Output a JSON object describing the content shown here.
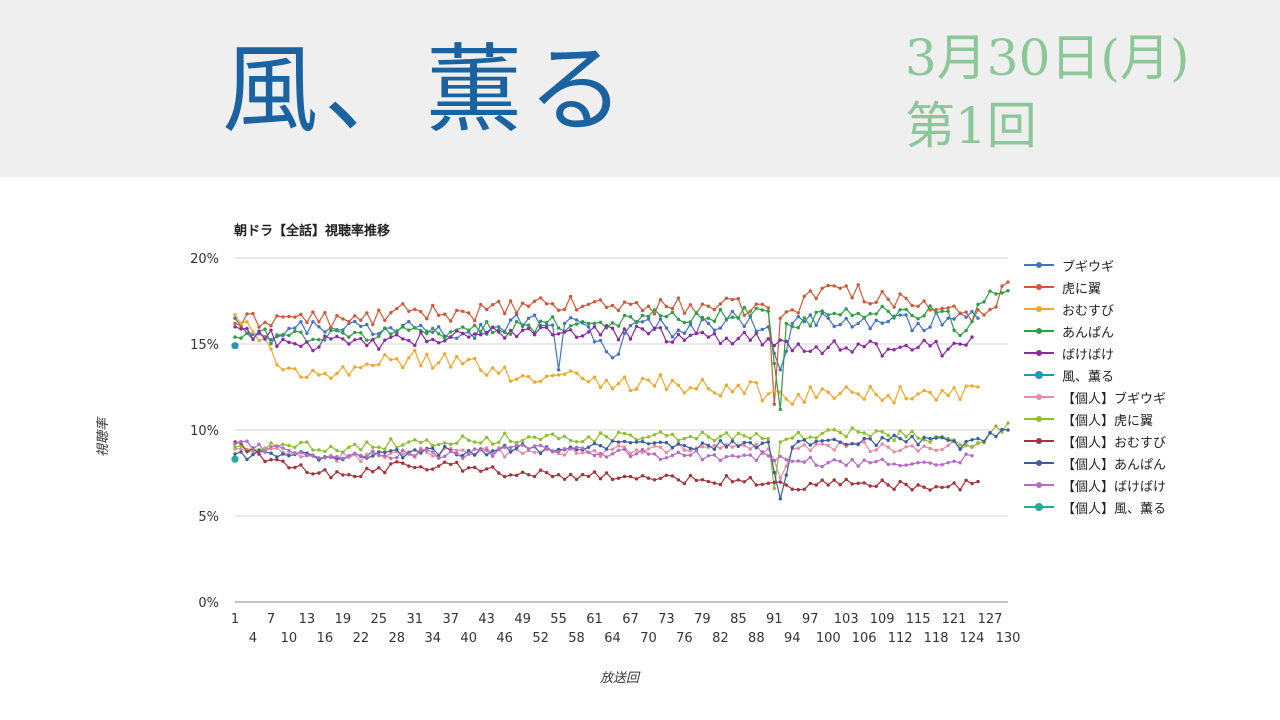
{
  "header": {
    "drama_title": "風、薫る",
    "air_date": "3月30日(月)",
    "episode": "第1回"
  },
  "chart_data": {
    "type": "line",
    "title": "朝ドラ【全話】視聴率推移",
    "xlabel": "放送回",
    "ylabel": "視聴率",
    "xlim": [
      1,
      130
    ],
    "ylim": [
      0,
      20
    ],
    "yticks": [
      0,
      5,
      10,
      15,
      20
    ],
    "ytick_labels": [
      "0%",
      "5%",
      "10%",
      "15%",
      "20%"
    ],
    "xticks_upper": [
      1,
      7,
      13,
      19,
      25,
      31,
      37,
      43,
      49,
      55,
      61,
      67,
      73,
      79,
      85,
      91,
      97,
      103,
      109,
      115,
      121,
      127
    ],
    "xticks_lower": [
      4,
      10,
      16,
      22,
      28,
      34,
      40,
      46,
      52,
      58,
      64,
      70,
      76,
      82,
      88,
      94,
      100,
      106,
      112,
      118,
      124,
      130
    ],
    "grid": true,
    "legend_position": "right",
    "series": [
      {
        "name": "ブギウギ",
        "color": "#4472c4",
        "keypoints": [
          [
            1,
            16.5
          ],
          [
            5,
            15.6
          ],
          [
            10,
            15.9
          ],
          [
            15,
            16.0
          ],
          [
            20,
            16.2
          ],
          [
            25,
            15.6
          ],
          [
            30,
            16.3
          ],
          [
            35,
            16.0
          ],
          [
            40,
            15.7
          ],
          [
            45,
            16.0
          ],
          [
            50,
            16.5
          ],
          [
            54,
            16.1
          ],
          [
            55,
            13.5
          ],
          [
            56,
            16.2
          ],
          [
            60,
            16.0
          ],
          [
            64,
            14.2
          ],
          [
            68,
            16.3
          ],
          [
            75,
            15.8
          ],
          [
            80,
            16.2
          ],
          [
            85,
            16.5
          ],
          [
            90,
            16.0
          ],
          [
            92,
            13.5
          ],
          [
            94,
            16.2
          ],
          [
            100,
            16.5
          ],
          [
            105,
            16.2
          ],
          [
            110,
            16.3
          ],
          [
            115,
            16.2
          ],
          [
            120,
            16.5
          ],
          [
            125,
            16.5
          ]
        ],
        "noise": 0.5
      },
      {
        "name": "虎に翼",
        "color": "#d05a38",
        "keypoints": [
          [
            1,
            16.2
          ],
          [
            10,
            16.6
          ],
          [
            20,
            16.3
          ],
          [
            30,
            16.9
          ],
          [
            40,
            16.8
          ],
          [
            50,
            17.2
          ],
          [
            60,
            17.3
          ],
          [
            70,
            17.2
          ],
          [
            80,
            17.2
          ],
          [
            90,
            17.1
          ],
          [
            91,
            11.5
          ],
          [
            92,
            16.5
          ],
          [
            100,
            18.4
          ],
          [
            110,
            17.6
          ],
          [
            120,
            17.1
          ],
          [
            124,
            16.3
          ],
          [
            127,
            17.0
          ],
          [
            130,
            18.6
          ]
        ],
        "noise": 0.5
      },
      {
        "name": "おむすび",
        "color": "#f0a830",
        "keypoints": [
          [
            1,
            16.7
          ],
          [
            5,
            15.2
          ],
          [
            10,
            13.6
          ],
          [
            15,
            13.2
          ],
          [
            20,
            13.2
          ],
          [
            25,
            13.8
          ],
          [
            30,
            14.2
          ],
          [
            35,
            13.9
          ],
          [
            40,
            14.1
          ],
          [
            45,
            13.3
          ],
          [
            50,
            13.1
          ],
          [
            55,
            13.2
          ],
          [
            60,
            12.8
          ],
          [
            65,
            12.7
          ],
          [
            70,
            12.9
          ],
          [
            75,
            12.6
          ],
          [
            80,
            12.4
          ],
          [
            85,
            12.6
          ],
          [
            90,
            12.1
          ],
          [
            93,
            11.8
          ],
          [
            100,
            12.2
          ],
          [
            105,
            12.1
          ],
          [
            110,
            12.0
          ],
          [
            115,
            12.1
          ],
          [
            120,
            12.0
          ],
          [
            125,
            12.5
          ]
        ],
        "noise": 0.5
      },
      {
        "name": "あんぱん",
        "color": "#2e9e44",
        "keypoints": [
          [
            1,
            15.4
          ],
          [
            10,
            15.5
          ],
          [
            20,
            15.4
          ],
          [
            30,
            15.8
          ],
          [
            40,
            15.8
          ],
          [
            50,
            16.1
          ],
          [
            60,
            16.2
          ],
          [
            70,
            16.6
          ],
          [
            80,
            16.5
          ],
          [
            90,
            16.9
          ],
          [
            92,
            11.2
          ],
          [
            93,
            16.2
          ],
          [
            100,
            16.7
          ],
          [
            110,
            16.9
          ],
          [
            120,
            16.9
          ],
          [
            122,
            15.5
          ],
          [
            125,
            17.3
          ],
          [
            130,
            18.1
          ]
        ],
        "noise": 0.45
      },
      {
        "name": "ばけばけ",
        "color": "#8b2aa3",
        "keypoints": [
          [
            1,
            16.0
          ],
          [
            10,
            15.1
          ],
          [
            20,
            15.0
          ],
          [
            30,
            15.2
          ],
          [
            40,
            15.4
          ],
          [
            50,
            15.9
          ],
          [
            60,
            15.7
          ],
          [
            70,
            15.6
          ],
          [
            80,
            15.4
          ],
          [
            90,
            15.3
          ],
          [
            95,
            15.0
          ],
          [
            100,
            14.8
          ],
          [
            110,
            14.7
          ],
          [
            115,
            14.8
          ],
          [
            120,
            14.7
          ],
          [
            124,
            15.4
          ]
        ],
        "noise": 0.45
      },
      {
        "name": "風、薫る",
        "color": "#2796b5",
        "keypoints": [
          [
            1,
            14.9
          ]
        ],
        "noise": 0
      },
      {
        "name": "【個人】ブギウギ",
        "color": "#e98aa4",
        "keypoints": [
          [
            1,
            8.9
          ],
          [
            10,
            8.6
          ],
          [
            20,
            8.4
          ],
          [
            30,
            8.7
          ],
          [
            40,
            8.6
          ],
          [
            50,
            8.8
          ],
          [
            60,
            8.7
          ],
          [
            70,
            8.9
          ],
          [
            80,
            9.0
          ],
          [
            90,
            8.9
          ],
          [
            92,
            7.2
          ],
          [
            94,
            8.9
          ],
          [
            100,
            9.1
          ],
          [
            110,
            9.0
          ],
          [
            120,
            9.1
          ],
          [
            125,
            9.2
          ]
        ],
        "noise": 0.3
      },
      {
        "name": "【個人】虎に翼",
        "color": "#8fbf2f",
        "keypoints": [
          [
            1,
            9.0
          ],
          [
            10,
            9.1
          ],
          [
            20,
            9.0
          ],
          [
            30,
            9.3
          ],
          [
            40,
            9.4
          ],
          [
            50,
            9.6
          ],
          [
            60,
            9.6
          ],
          [
            70,
            9.6
          ],
          [
            80,
            9.6
          ],
          [
            90,
            9.5
          ],
          [
            91,
            6.6
          ],
          [
            92,
            9.3
          ],
          [
            100,
            10.0
          ],
          [
            110,
            9.7
          ],
          [
            120,
            9.5
          ],
          [
            124,
            9.0
          ],
          [
            130,
            10.4
          ]
        ],
        "noise": 0.3
      },
      {
        "name": "【個人】おむすび",
        "color": "#a6323c",
        "keypoints": [
          [
            1,
            9.3
          ],
          [
            5,
            8.6
          ],
          [
            10,
            7.8
          ],
          [
            15,
            7.5
          ],
          [
            20,
            7.4
          ],
          [
            25,
            7.8
          ],
          [
            30,
            7.9
          ],
          [
            35,
            7.9
          ],
          [
            40,
            7.8
          ],
          [
            45,
            7.5
          ],
          [
            50,
            7.4
          ],
          [
            55,
            7.4
          ],
          [
            60,
            7.3
          ],
          [
            65,
            7.2
          ],
          [
            70,
            7.2
          ],
          [
            75,
            7.1
          ],
          [
            80,
            7.0
          ],
          [
            85,
            7.1
          ],
          [
            90,
            6.9
          ],
          [
            93,
            6.8
          ],
          [
            100,
            6.8
          ],
          [
            105,
            6.9
          ],
          [
            110,
            6.8
          ],
          [
            115,
            6.8
          ],
          [
            120,
            6.7
          ],
          [
            125,
            7.0
          ]
        ],
        "noise": 0.3
      },
      {
        "name": "【個人】あんぱん",
        "color": "#3a5f9e",
        "keypoints": [
          [
            1,
            8.6
          ],
          [
            10,
            8.5
          ],
          [
            20,
            8.5
          ],
          [
            30,
            8.7
          ],
          [
            40,
            8.8
          ],
          [
            50,
            8.9
          ],
          [
            60,
            9.0
          ],
          [
            70,
            9.2
          ],
          [
            80,
            9.1
          ],
          [
            90,
            9.3
          ],
          [
            92,
            6.0
          ],
          [
            94,
            9.0
          ],
          [
            100,
            9.4
          ],
          [
            110,
            9.4
          ],
          [
            120,
            9.4
          ],
          [
            122,
            8.9
          ],
          [
            125,
            9.5
          ],
          [
            130,
            10.0
          ]
        ],
        "noise": 0.3
      },
      {
        "name": "【個人】ばけばけ",
        "color": "#b56cc4",
        "keypoints": [
          [
            1,
            9.2
          ],
          [
            10,
            8.8
          ],
          [
            20,
            8.5
          ],
          [
            30,
            8.6
          ],
          [
            40,
            8.6
          ],
          [
            50,
            8.9
          ],
          [
            60,
            8.7
          ],
          [
            70,
            8.6
          ],
          [
            80,
            8.5
          ],
          [
            90,
            8.5
          ],
          [
            95,
            8.2
          ],
          [
            100,
            8.1
          ],
          [
            110,
            8.0
          ],
          [
            115,
            8.1
          ],
          [
            120,
            8.1
          ],
          [
            124,
            8.5
          ]
        ],
        "noise": 0.3
      },
      {
        "name": "【個人】風、薫る",
        "color": "#2aa89c",
        "keypoints": [
          [
            1,
            8.3
          ]
        ],
        "noise": 0
      }
    ]
  }
}
